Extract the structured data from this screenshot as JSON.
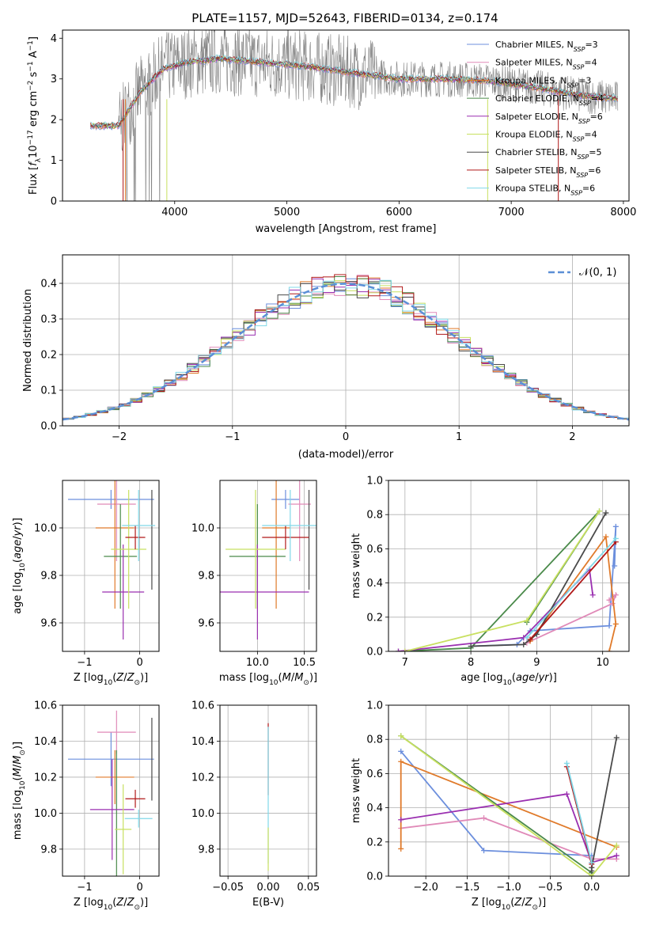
{
  "title": "PLATE=1157, MJD=52643, FIBERID=0134, z=0.174",
  "colors": {
    "chabrier_miles": "#6c8fdd",
    "salpeter_miles": "#e08ab8",
    "kroupa_miles": "#e07a2a",
    "chabrier_elodie": "#4a8a4a",
    "salpeter_elodie": "#9a2fb0",
    "kroupa_elodie": "#c8e060",
    "chabrier_stelib": "#4a4a4a",
    "salpeter_stelib": "#b01818",
    "kroupa_stelib": "#80d8e8",
    "gaussian": "#5b8fd6",
    "data": "#808080"
  },
  "legend_models": [
    {
      "name": "Chabrier MILES, N",
      "sub": "SSP",
      "val": "=3"
    },
    {
      "name": "Salpeter MILES, N",
      "sub": "SSP",
      "val": "=4"
    },
    {
      "name": "Kroupa MILES, N",
      "sub": "SSP",
      "val": "=3"
    },
    {
      "name": "Chabrier ELODIE, N",
      "sub": "SSP",
      "val": "=4"
    },
    {
      "name": "Salpeter ELODIE, N",
      "sub": "SSP",
      "val": "=6"
    },
    {
      "name": "Kroupa ELODIE, N",
      "sub": "SSP",
      "val": "=4"
    },
    {
      "name": "Chabrier STELIB, N",
      "sub": "SSP",
      "val": "=5"
    },
    {
      "name": "Salpeter STELIB, N",
      "sub": "SSP",
      "val": "=6"
    },
    {
      "name": "Kroupa STELIB, N",
      "sub": "SSP",
      "val": "=6"
    }
  ],
  "legend_gauss": "𝒩(0, 1)",
  "chart_data": [
    {
      "type": "line",
      "panel": "spectrum",
      "xlabel": "wavelength [Angstrom, rest frame]",
      "ylabel": "Flux [f_λ 10⁻¹⁷ erg cm⁻² s⁻¹ A⁻¹]",
      "xlim": [
        3000,
        8050
      ],
      "ylim": [
        0,
        4.2
      ],
      "xticks": [
        "4000",
        "5000",
        "6000",
        "7000",
        "8000"
      ],
      "yticks": [
        "0",
        "1",
        "2",
        "3",
        "4"
      ],
      "continuum": {
        "x": [
          3250,
          3500,
          3700,
          3900,
          4100,
          4400,
          4800,
          5200,
          5600,
          6000,
          6400,
          6800,
          7200,
          7600,
          8000
        ],
        "y": [
          1.85,
          1.85,
          2.7,
          3.25,
          3.4,
          3.5,
          3.4,
          3.3,
          3.15,
          3.0,
          3.0,
          2.95,
          2.8,
          2.6,
          2.5
        ]
      }
    },
    {
      "type": "line",
      "panel": "residuals",
      "xlabel": "(data-model)/error",
      "ylabel": "Normed distribution",
      "xlim": [
        -2.5,
        2.5
      ],
      "ylim": [
        0,
        0.48
      ],
      "xticks": [
        "−2",
        "−1",
        "0",
        "1",
        "2"
      ],
      "yticks": [
        "0.0",
        "0.1",
        "0.2",
        "0.3",
        "0.4"
      ],
      "series": [
        {
          "name": "𝒩(0, 1)",
          "mean": 0,
          "sigma": 1
        }
      ]
    },
    {
      "type": "scatter",
      "panel": "age-vs-Z",
      "xlabel": "Z [log10(Z/Z⊙)]",
      "ylabel": "age  [log10(age/yr)]",
      "xlim": [
        -1.4,
        0.35
      ],
      "ylim": [
        9.48,
        10.2
      ],
      "xticks": [
        "−1",
        "0"
      ],
      "yticks": [
        "9.6",
        "9.8",
        "10.0"
      ],
      "points": [
        {
          "c": "chabrier_miles",
          "x": -0.52,
          "y": 10.12,
          "xerr": 0.78,
          "yerr": 0.04
        },
        {
          "c": "salpeter_miles",
          "x": -0.42,
          "y": 10.1,
          "xerr": 0.35,
          "yerr": 0.24
        },
        {
          "c": "kroupa_miles",
          "x": -0.45,
          "y": 10.0,
          "xerr": 0.35,
          "yerr": 0.34
        },
        {
          "c": "chabrier_elodie",
          "x": -0.35,
          "y": 9.88,
          "xerr": 0.3,
          "yerr": 0.22
        },
        {
          "c": "salpeter_elodie",
          "x": -0.3,
          "y": 9.73,
          "xerr": 0.38,
          "yerr": 0.2
        },
        {
          "c": "kroupa_elodie",
          "x": -0.2,
          "y": 9.91,
          "xerr": 0.32,
          "yerr": 0.25
        },
        {
          "c": "chabrier_stelib",
          "x": 0.22,
          "y": 9.95,
          "xerr": 0.0,
          "yerr": 0.21
        },
        {
          "c": "salpeter_stelib",
          "x": -0.08,
          "y": 9.96,
          "xerr": 0.18,
          "yerr": 0.05
        },
        {
          "c": "kroupa_stelib",
          "x": -0.02,
          "y": 10.01,
          "xerr": 0.3,
          "yerr": 0.15
        }
      ]
    },
    {
      "type": "scatter",
      "panel": "age-vs-mass",
      "xlabel": "mass [log10(M/M⊙)]",
      "ylabel": "",
      "xlim": [
        9.6,
        10.63
      ],
      "ylim": [
        9.48,
        10.2
      ],
      "xticks": [
        "10.0",
        "10.5"
      ],
      "yticks": [
        "9.6",
        "9.8",
        "10.0"
      ],
      "points": [
        {
          "c": "chabrier_miles",
          "x": 10.3,
          "y": 10.12,
          "xerr": 0.15,
          "yerr": 0.04
        },
        {
          "c": "salpeter_miles",
          "x": 10.45,
          "y": 10.1,
          "xerr": 0.12,
          "yerr": 0.24
        },
        {
          "c": "kroupa_miles",
          "x": 10.2,
          "y": 10.0,
          "xerr": 0.15,
          "yerr": 0.34
        },
        {
          "c": "chabrier_elodie",
          "x": 10.0,
          "y": 9.88,
          "xerr": 0.3,
          "yerr": 0.22
        },
        {
          "c": "salpeter_elodie",
          "x": 10.0,
          "y": 9.73,
          "xerr": 0.55,
          "yerr": 0.2
        },
        {
          "c": "kroupa_elodie",
          "x": 9.98,
          "y": 9.91,
          "xerr": 0.32,
          "yerr": 0.25
        },
        {
          "c": "chabrier_stelib",
          "x": 10.55,
          "y": 9.95,
          "xerr": 0.0,
          "yerr": 0.21
        },
        {
          "c": "salpeter_stelib",
          "x": 10.3,
          "y": 9.96,
          "xerr": 0.25,
          "yerr": 0.05
        },
        {
          "c": "kroupa_stelib",
          "x": 10.35,
          "y": 10.01,
          "xerr": 0.3,
          "yerr": 0.15
        }
      ]
    },
    {
      "type": "line",
      "panel": "mass-weight-vs-age",
      "xlabel": "age  [log10(age/yr)]",
      "ylabel": "mass weight",
      "xlim": [
        6.75,
        10.4
      ],
      "ylim": [
        0,
        1.0
      ],
      "xticks": [
        "7",
        "8",
        "9",
        "10"
      ],
      "yticks": [
        "0.0",
        "0.2",
        "0.4",
        "0.6",
        "0.8",
        "1.0"
      ],
      "series": [
        {
          "c": "chabrier_miles",
          "x": [
            8.0,
            8.7,
            8.9,
            10.1,
            10.2,
            10.18
          ],
          "y": [
            0.03,
            0.04,
            0.12,
            0.15,
            0.73,
            0.5
          ]
        },
        {
          "c": "salpeter_miles",
          "x": [
            8.85,
            10.15,
            10.2,
            10.1
          ],
          "y": [
            0.05,
            0.28,
            0.33,
            0.3
          ]
        },
        {
          "c": "kroupa_miles",
          "x": [
            8.9,
            10.05,
            10.2,
            10.1
          ],
          "y": [
            0.06,
            0.67,
            0.16,
            0.0
          ]
        },
        {
          "c": "chabrier_elodie",
          "x": [
            8.85,
            9.95,
            8.0,
            6.9
          ],
          "y": [
            0.17,
            0.82,
            0.02,
            0.0
          ]
        },
        {
          "c": "salpeter_elodie",
          "x": [
            6.9,
            8.8,
            9.8,
            9.85
          ],
          "y": [
            0.0,
            0.08,
            0.48,
            0.33
          ]
        },
        {
          "c": "kroupa_elodie",
          "x": [
            7.0,
            8.85,
            9.95
          ],
          "y": [
            0.0,
            0.18,
            0.82
          ]
        },
        {
          "c": "chabrier_stelib",
          "x": [
            8.0,
            8.8,
            9.0,
            10.05
          ],
          "y": [
            0.03,
            0.04,
            0.1,
            0.81
          ]
        },
        {
          "c": "salpeter_stelib",
          "x": [
            8.9,
            10.2
          ],
          "y": [
            0.07,
            0.64
          ]
        },
        {
          "c": "kroupa_stelib",
          "x": [
            8.85,
            10.2
          ],
          "y": [
            0.08,
            0.66
          ]
        }
      ]
    },
    {
      "type": "scatter",
      "panel": "mass-vs-Z",
      "xlabel": "Z [log10(Z/Z⊙)]",
      "ylabel": "mass [log10(M/M⊙)]",
      "xlim": [
        -1.4,
        0.35
      ],
      "ylim": [
        9.65,
        10.6
      ],
      "xticks": [
        "−1",
        "0"
      ],
      "yticks": [
        "9.8",
        "10.0",
        "10.2",
        "10.4",
        "10.6"
      ],
      "points": [
        {
          "c": "chabrier_miles",
          "x": -0.52,
          "y": 10.3,
          "xerr": 0.78,
          "yerr": 0.15
        },
        {
          "c": "salpeter_miles",
          "x": -0.42,
          "y": 10.45,
          "xerr": 0.35,
          "yerr": 0.12
        },
        {
          "c": "kroupa_miles",
          "x": -0.45,
          "y": 10.2,
          "xerr": 0.35,
          "yerr": 0.15
        },
        {
          "c": "chabrier_elodie",
          "x": -0.42,
          "y": 10.0,
          "xerr": 0.0,
          "yerr": 0.35
        },
        {
          "c": "salpeter_elodie",
          "x": -0.5,
          "y": 10.02,
          "xerr": 0.4,
          "yerr": 0.28
        },
        {
          "c": "kroupa_elodie",
          "x": -0.3,
          "y": 9.91,
          "xerr": 0.15,
          "yerr": 0.25
        },
        {
          "c": "chabrier_stelib",
          "x": 0.22,
          "y": 10.3,
          "xerr": 0.0,
          "yerr": 0.23
        },
        {
          "c": "salpeter_stelib",
          "x": -0.08,
          "y": 10.08,
          "xerr": 0.18,
          "yerr": 0.05
        },
        {
          "c": "kroupa_stelib",
          "x": -0.02,
          "y": 9.97,
          "xerr": 0.25,
          "yerr": 0.05
        }
      ]
    },
    {
      "type": "scatter",
      "panel": "mass-vs-ebv",
      "xlabel": "E(B-V)",
      "ylabel": "",
      "xlim": [
        -0.06,
        0.06
      ],
      "ylim": [
        9.65,
        10.6
      ],
      "xticks": [
        "−0.05",
        "0.00",
        "0.05"
      ],
      "yticks": [
        "9.8",
        "10.0",
        "10.2",
        "10.4",
        "10.6"
      ],
      "points": [
        {
          "c": "salpeter_stelib",
          "x": 0.0,
          "y": 10.3,
          "xerr": 0.0,
          "yerr": 0.2
        },
        {
          "c": "kroupa_stelib",
          "x": 0.0,
          "y": 10.1,
          "xerr": 0.0,
          "yerr": 0.38
        },
        {
          "c": "kroupa_elodie",
          "x": 0.0,
          "y": 9.8,
          "xerr": 0.0,
          "yerr": 0.12
        }
      ]
    },
    {
      "type": "line",
      "panel": "mass-weight-vs-Z",
      "xlabel": "Z [log10(Z/Z⊙)]",
      "ylabel": "mass weight",
      "xlim": [
        -2.45,
        0.45
      ],
      "ylim": [
        0,
        1.0
      ],
      "xticks": [
        "−2.0",
        "−1.5",
        "−1.0",
        "−0.5",
        "0.0"
      ],
      "yticks": [
        "0.0",
        "0.2",
        "0.4",
        "0.6",
        "0.8",
        "1.0"
      ],
      "series": [
        {
          "c": "chabrier_miles",
          "x": [
            -2.3,
            -1.3,
            0.0,
            0.0
          ],
          "y": [
            0.73,
            0.15,
            0.12,
            0.0
          ]
        },
        {
          "c": "salpeter_miles",
          "x": [
            -2.3,
            -1.3,
            0.0,
            0.3
          ],
          "y": [
            0.28,
            0.34,
            0.1,
            0.1
          ]
        },
        {
          "c": "kroupa_miles",
          "x": [
            -2.3,
            -2.3,
            0.3
          ],
          "y": [
            0.16,
            0.67,
            0.17
          ]
        },
        {
          "c": "chabrier_elodie",
          "x": [
            -2.3,
            0.0,
            0.0
          ],
          "y": [
            0.82,
            0.02,
            0.0
          ]
        },
        {
          "c": "salpeter_elodie",
          "x": [
            -2.3,
            -0.3,
            0.0,
            0.3
          ],
          "y": [
            0.33,
            0.48,
            0.08,
            0.12
          ]
        },
        {
          "c": "kroupa_elodie",
          "x": [
            -2.3,
            0.0,
            0.3
          ],
          "y": [
            0.82,
            0.0,
            0.18
          ]
        },
        {
          "c": "chabrier_stelib",
          "x": [
            0.0,
            0.0,
            0.3
          ],
          "y": [
            0.03,
            0.05,
            0.81
          ]
        },
        {
          "c": "salpeter_stelib",
          "x": [
            -0.3,
            0.0
          ],
          "y": [
            0.64,
            0.07
          ]
        },
        {
          "c": "kroupa_stelib",
          "x": [
            -0.3,
            0.0
          ],
          "y": [
            0.66,
            0.08
          ]
        }
      ]
    }
  ]
}
